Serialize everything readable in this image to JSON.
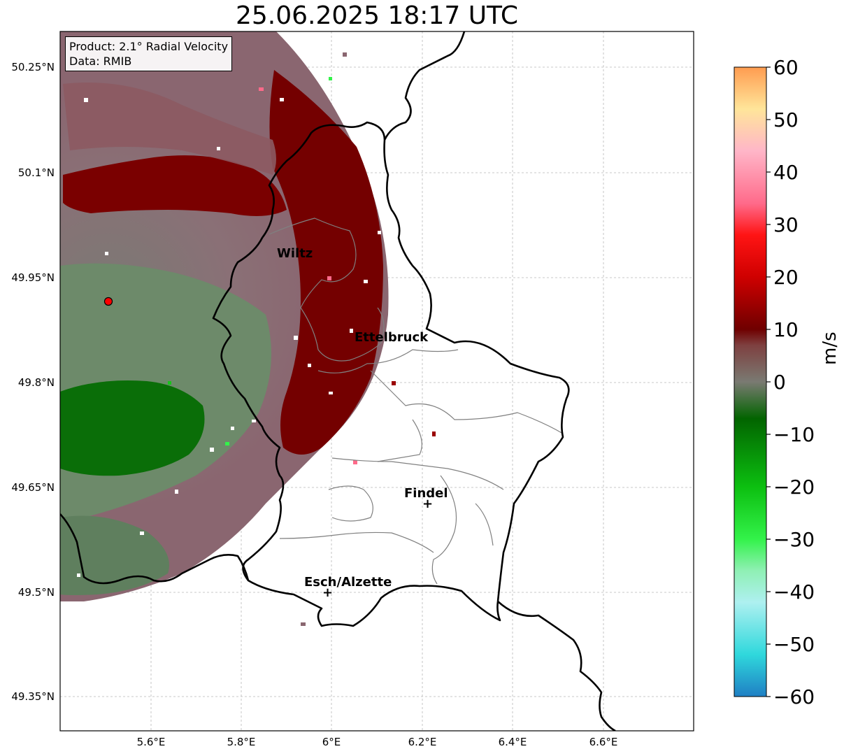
{
  "title": "25.06.2025 18:17 UTC",
  "info": {
    "product": "Product: 2.1° Radial Velocity",
    "data": "Data: RMIB"
  },
  "map": {
    "lon_range": [
      5.4,
      6.8
    ],
    "lat_range": [
      49.3,
      50.3
    ],
    "lat_ticks": [
      "49.35°N",
      "49.5°N",
      "49.65°N",
      "49.8°N",
      "49.95°N",
      "50.1°N",
      "50.25°N"
    ],
    "lon_ticks": [
      "5.6°E",
      "5.8°E",
      "6°E",
      "6.2°E",
      "6.4°E",
      "6.6°E"
    ],
    "gridlines": true,
    "radar_site": {
      "lon": 5.505,
      "lat": 49.914
    },
    "cities": [
      {
        "name": "Wiltz",
        "lon": 5.935,
        "lat": 49.966
      },
      {
        "name": "Ettelbruck",
        "lon": 6.104,
        "lat": 49.848
      },
      {
        "name": "Findel",
        "lon": 6.21,
        "lat": 49.627
      },
      {
        "name": "Esch/Alzette",
        "lon": 5.98,
        "lat": 49.5
      }
    ]
  },
  "colorbar": {
    "label": "m/s",
    "ticks": [
      "60",
      "50",
      "40",
      "30",
      "20",
      "10",
      "0",
      "−10",
      "−20",
      "−30",
      "−40",
      "−50",
      "−60"
    ],
    "range": [
      -60,
      60
    ],
    "stops": [
      {
        "v": -60,
        "c": "#1f7fc4"
      },
      {
        "v": -52,
        "c": "#2fd8dc"
      },
      {
        "v": -42,
        "c": "#aef0f0"
      },
      {
        "v": -36,
        "c": "#8ff0b4"
      },
      {
        "v": -30,
        "c": "#33f24a"
      },
      {
        "v": -20,
        "c": "#0cbf10"
      },
      {
        "v": -7,
        "c": "#026400"
      },
      {
        "v": 0,
        "c": "#7a7a72"
      },
      {
        "v": 7,
        "c": "#7e4040"
      },
      {
        "v": 10,
        "c": "#6f0000"
      },
      {
        "v": 20,
        "c": "#cf0000"
      },
      {
        "v": 28,
        "c": "#ff1414"
      },
      {
        "v": 34,
        "c": "#ff6a8a"
      },
      {
        "v": 44,
        "c": "#ffb6c8"
      },
      {
        "v": 52,
        "c": "#ffe59a"
      },
      {
        "v": 60,
        "c": "#ff9c50"
      }
    ]
  },
  "colors": {
    "dark_red": "#740000",
    "gray_red": "#8a6670",
    "gray_green": "#6a8a6a",
    "dark_green": "#0a7008",
    "border": "#000000",
    "district": "#808080"
  }
}
